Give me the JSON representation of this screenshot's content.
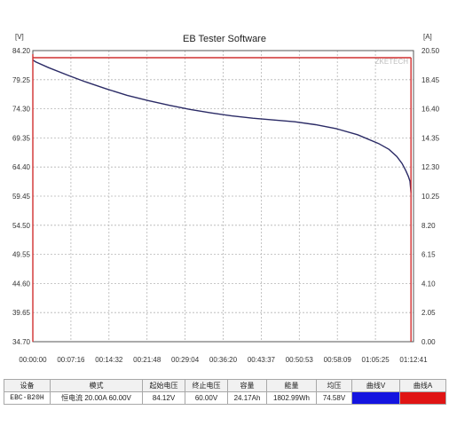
{
  "chart_data": {
    "type": "line",
    "title": "EB Tester Software",
    "left_axis_unit": "[V]",
    "right_axis_unit": "[A]",
    "watermark": "ZKETECH",
    "y_left_ticks": [
      "84.20",
      "79.25",
      "74.30",
      "69.35",
      "64.40",
      "59.45",
      "54.50",
      "49.55",
      "44.60",
      "39.65",
      "34.70"
    ],
    "y_right_ticks": [
      "20.50",
      "18.45",
      "16.40",
      "14.35",
      "12.30",
      "10.25",
      "8.20",
      "6.15",
      "4.10",
      "2.05",
      "0.00"
    ],
    "x_ticks": [
      "00:00:00",
      "00:07:16",
      "00:14:32",
      "00:21:48",
      "00:29:04",
      "00:36:20",
      "00:43:37",
      "00:50:53",
      "00:58:09",
      "01:05:25",
      "01:12:41"
    ],
    "ylim_left": [
      34.7,
      84.2
    ],
    "ylim_right": [
      0,
      20.5
    ],
    "xlim_minutes": [
      0,
      72.68
    ],
    "grid": true,
    "series": [
      {
        "axis": "left",
        "color": "#2b2b66",
        "x": [
          0,
          0.5,
          3,
          7,
          10,
          14,
          18,
          22,
          26,
          30,
          34,
          38,
          42,
          46,
          50,
          54,
          58,
          62,
          66,
          68,
          69.5,
          70.5,
          71.2,
          71.7,
          72.0,
          72.2
        ],
        "y": [
          82.6,
          82.3,
          81.3,
          79.9,
          78.9,
          77.7,
          76.6,
          75.7,
          74.9,
          74.2,
          73.6,
          73.1,
          72.7,
          72.4,
          72.1,
          71.6,
          70.9,
          69.9,
          68.4,
          67.4,
          66.2,
          65.0,
          63.8,
          62.8,
          62.0,
          60.0
        ]
      },
      {
        "axis": "right",
        "color": "#d13030",
        "x": [
          0,
          72.2
        ],
        "y": [
          20.0,
          20.0
        ]
      }
    ]
  },
  "table": {
    "headers": [
      "设备",
      "模式",
      "起始电压",
      "终止电压",
      "容量",
      "能量",
      "均压",
      "曲线V",
      "曲线A"
    ],
    "device": "EBC-B20H",
    "mode_name": "恒电流",
    "mode_current": "20.00A",
    "mode_voltage": "60.00V",
    "start_voltage": "84.12V",
    "end_voltage": "60.00V",
    "capacity": "24.17Ah",
    "energy": "1802.99Wh",
    "avg_voltage": "74.58V",
    "curve_v_color": "#1414e0",
    "curve_a_color": "#e01414"
  }
}
